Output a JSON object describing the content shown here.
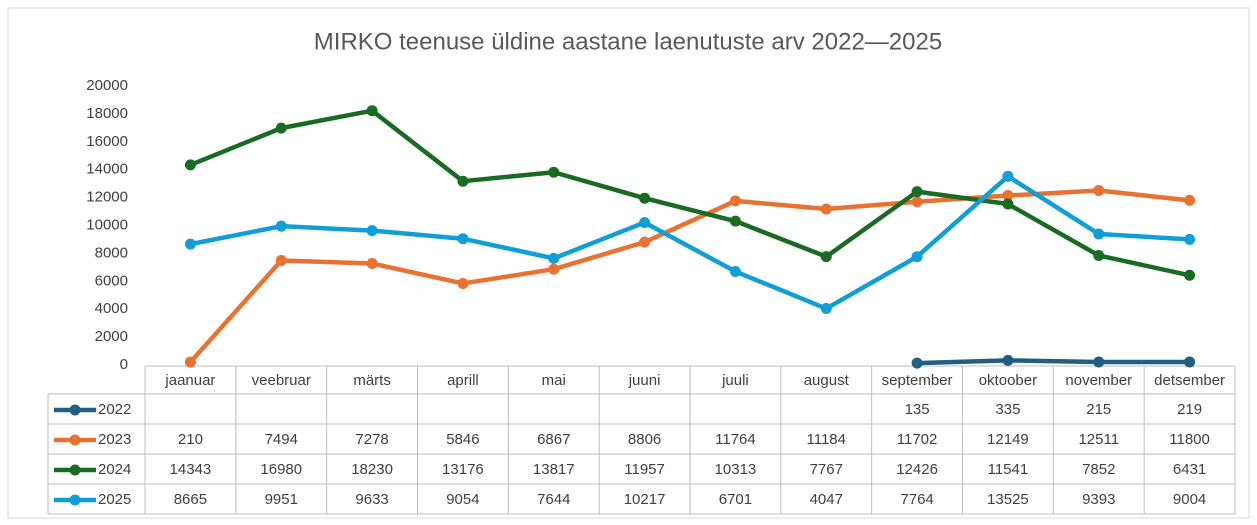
{
  "chart_data": {
    "type": "line",
    "title": "MIRKO teenuse üldine aastane laenutuste arv 2022—2025",
    "categories": [
      "jaanuar",
      "veebruar",
      "märts",
      "aprill",
      "mai",
      "juuni",
      "juuli",
      "august",
      "september",
      "oktoober",
      "november",
      "detsember"
    ],
    "series": [
      {
        "name": "2022",
        "color": "#215f80",
        "values": [
          null,
          null,
          null,
          null,
          null,
          null,
          null,
          null,
          135,
          335,
          215,
          219
        ]
      },
      {
        "name": "2023",
        "color": "#e97132",
        "values": [
          210,
          7494,
          7278,
          5846,
          6867,
          8806,
          11764,
          11184,
          11702,
          12149,
          12511,
          11800
        ]
      },
      {
        "name": "2024",
        "color": "#196b24",
        "values": [
          14343,
          16980,
          18230,
          13176,
          13817,
          11957,
          10313,
          7767,
          12426,
          11541,
          7852,
          6431
        ]
      },
      {
        "name": "2025",
        "color": "#0f9ed5",
        "values": [
          8665,
          9951,
          9633,
          9054,
          7644,
          10217,
          6701,
          4047,
          7764,
          13525,
          9393,
          9004
        ]
      }
    ],
    "ylim": [
      0,
      20000
    ],
    "yticks": [
      0,
      2000,
      4000,
      6000,
      8000,
      10000,
      12000,
      14000,
      16000,
      18000,
      20000
    ],
    "grid": false
  }
}
